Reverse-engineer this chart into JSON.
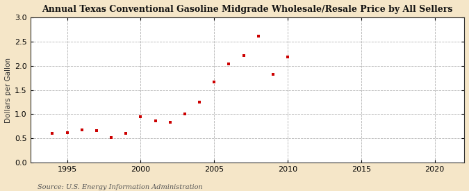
{
  "title": "Annual Texas Conventional Gasoline Midgrade Wholesale/Resale Price by All Sellers",
  "ylabel": "Dollars per Gallon",
  "source": "Source: U.S. Energy Information Administration",
  "fig_background_color": "#f5e6c8",
  "plot_background_color": "#ffffff",
  "marker_color": "#cc0000",
  "xlim": [
    1992.5,
    2022
  ],
  "ylim": [
    0.0,
    3.0
  ],
  "xticks": [
    1995,
    2000,
    2005,
    2010,
    2015,
    2020
  ],
  "yticks": [
    0.0,
    0.5,
    1.0,
    1.5,
    2.0,
    2.5,
    3.0
  ],
  "years": [
    1994,
    1995,
    1996,
    1997,
    1998,
    1999,
    2000,
    2001,
    2002,
    2003,
    2004,
    2005,
    2006,
    2007,
    2008,
    2009,
    2010
  ],
  "values": [
    0.6,
    0.62,
    0.68,
    0.66,
    0.52,
    0.6,
    0.95,
    0.86,
    0.83,
    1.0,
    1.25,
    1.66,
    2.04,
    2.22,
    2.62,
    1.82,
    2.19
  ]
}
